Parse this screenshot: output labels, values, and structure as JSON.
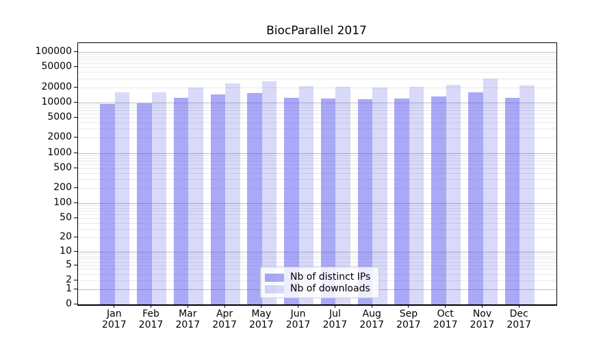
{
  "chart_data": {
    "type": "bar",
    "title": "BiocParallel 2017",
    "xlabel": "",
    "ylabel": "",
    "categories": [
      "Jan 2017",
      "Feb 2017",
      "Mar 2017",
      "Apr 2017",
      "May 2017",
      "Jun 2017",
      "Jul 2017",
      "Aug 2017",
      "Sep 2017",
      "Oct 2017",
      "Nov 2017",
      "Dec 2017"
    ],
    "series": [
      {
        "name": "Nb of distinct IPs",
        "color": "rgba(83,83,239,0.5)",
        "values": [
          9400,
          9600,
          12300,
          14500,
          15400,
          12500,
          12100,
          11500,
          12000,
          13000,
          15900,
          12200
        ]
      },
      {
        "name": "Nb of downloads",
        "color": "rgba(65,65,225,0.2)",
        "values": [
          15900,
          16000,
          19600,
          24000,
          26400,
          21000,
          20600,
          19700,
          20200,
          22600,
          29300,
          21700
        ]
      }
    ],
    "y_ticks": [
      0,
      1,
      2,
      5,
      10,
      20,
      50,
      100,
      200,
      500,
      1000,
      2000,
      5000,
      10000,
      20000,
      50000,
      100000
    ],
    "y_scale": "log10(1+x)",
    "ylim": [
      0,
      150000
    ],
    "grid": true,
    "legend_position": "lower center",
    "colors": {
      "bar_dark_on_white": "#a9a9f7",
      "bar_light_on_white": "#d9d9f9",
      "major_grid": "#bdbdbd",
      "minor_grid": "#e8e8e8",
      "spine": "#000000",
      "text": "#000000",
      "legend_border": "#cccccc"
    }
  }
}
